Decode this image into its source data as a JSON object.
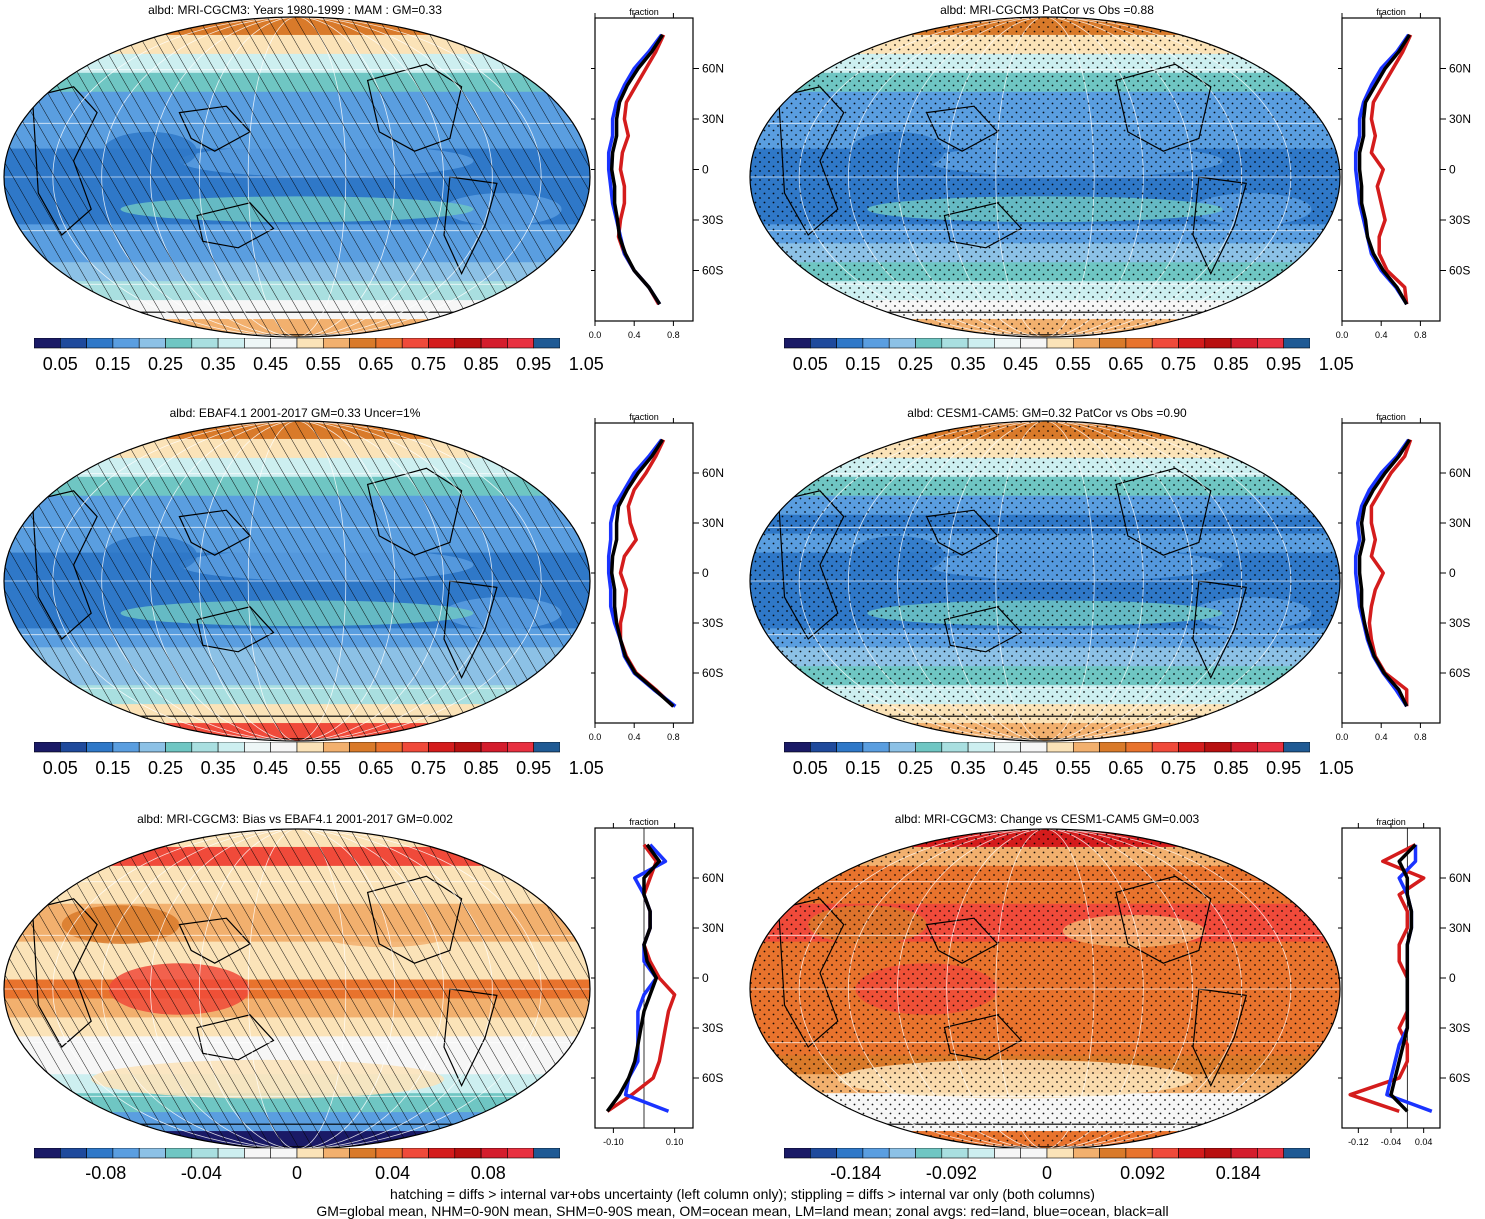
{
  "colors": {
    "abs_scale": [
      "#1a1a66",
      "#1f4a9c",
      "#2f78c8",
      "#5a9ee0",
      "#8cc1e6",
      "#6fc6c3",
      "#a9dfe0",
      "#cdeff0",
      "#eef7f7",
      "#f6f6f6",
      "#fbe3b8",
      "#f2b06e",
      "#d97a2a",
      "#e8732d",
      "#f04a3a",
      "#d41c1c",
      "#b81010",
      "#d41c2c",
      "#e83040",
      "#1f5a94"
    ],
    "diff_scale": [
      "#1a1a66",
      "#1f4a9c",
      "#2f78c8",
      "#5a9ee0",
      "#8cc1e6",
      "#6fc6c3",
      "#a9dfe0",
      "#cdeff0",
      "#f6f6f6",
      "#f6f6f6",
      "#fbe3b8",
      "#f2b06e",
      "#d97a2a",
      "#e8732d",
      "#f04a3a",
      "#d41c1c",
      "#b81010",
      "#d41c2c",
      "#e83040",
      "#1f5a94"
    ],
    "land": "#d41c1c",
    "ocean": "#1a33ff",
    "all": "#000000"
  },
  "footer": {
    "line1": "hatching = diffs > internal var+obs uncertainty (left column only); stippling = diffs > internal var only (both columns)",
    "line2": "GM=global mean, NHM=0-90N mean, SHM=0-90S mean, OM=ocean mean, LM=land mean; zonal avgs: red=land, blue=ocean, black=all"
  },
  "chart_data": [
    {
      "type": "heatmap",
      "title": "albd: MRI-CGCM3: Years 1980-1999 : MAM : GM=0.33",
      "overlay": "hatching",
      "colorbar_labels": [
        "0.05",
        "0.15",
        "0.25",
        "0.35",
        "0.45",
        "0.55",
        "0.65",
        "0.75",
        "0.85",
        "0.95",
        "1.05"
      ],
      "zonal": {
        "title": "fraction",
        "xticks": [
          "0.0",
          "0.4",
          "0.8"
        ],
        "xlim": [
          0,
          1.0
        ],
        "yticks": [
          "60N",
          "30N",
          "0",
          "30S",
          "60S"
        ],
        "lat": [
          80,
          70,
          60,
          50,
          40,
          30,
          20,
          10,
          0,
          -10,
          -20,
          -30,
          -40,
          -50,
          -60,
          -70,
          -80
        ],
        "land": [
          0.7,
          0.62,
          0.52,
          0.42,
          0.32,
          0.3,
          0.34,
          0.28,
          0.26,
          0.3,
          0.3,
          0.26,
          0.24,
          0.3,
          0.4,
          0.55,
          0.65
        ],
        "ocean": [
          0.68,
          0.55,
          0.4,
          0.3,
          0.22,
          0.18,
          0.18,
          0.14,
          0.14,
          0.16,
          0.18,
          0.22,
          0.26,
          0.3,
          0.4,
          0.55,
          0.66
        ],
        "all": [
          0.69,
          0.58,
          0.44,
          0.33,
          0.25,
          0.22,
          0.22,
          0.18,
          0.17,
          0.2,
          0.2,
          0.23,
          0.25,
          0.31,
          0.4,
          0.55,
          0.66
        ]
      }
    },
    {
      "type": "heatmap",
      "title": "albd: MRI-CGCM3 PatCor vs Obs =0.88",
      "overlay": "stippling",
      "colorbar_labels": [
        "0.05",
        "0.15",
        "0.25",
        "0.35",
        "0.45",
        "0.55",
        "0.65",
        "0.75",
        "0.85",
        "0.95",
        "1.05"
      ],
      "zonal": {
        "title": "fraction",
        "xticks": [
          "0.0",
          "0.4",
          "0.8"
        ],
        "xlim": [
          0,
          1.0
        ],
        "yticks": [
          "60N",
          "30N",
          "0",
          "30S",
          "60S"
        ],
        "lat": [
          80,
          70,
          60,
          50,
          40,
          30,
          20,
          10,
          0,
          -10,
          -20,
          -30,
          -40,
          -50,
          -60,
          -70,
          -80
        ],
        "land": [
          0.7,
          0.62,
          0.52,
          0.42,
          0.32,
          0.3,
          0.34,
          0.3,
          0.42,
          0.36,
          0.4,
          0.44,
          0.38,
          0.38,
          0.46,
          0.64,
          0.66
        ],
        "ocean": [
          0.68,
          0.56,
          0.4,
          0.3,
          0.22,
          0.18,
          0.18,
          0.14,
          0.14,
          0.16,
          0.18,
          0.22,
          0.26,
          0.3,
          0.4,
          0.55,
          0.66
        ],
        "all": [
          0.69,
          0.58,
          0.44,
          0.34,
          0.24,
          0.22,
          0.22,
          0.18,
          0.18,
          0.2,
          0.2,
          0.24,
          0.26,
          0.32,
          0.42,
          0.56,
          0.66
        ]
      }
    },
    {
      "type": "heatmap",
      "title": "albd: EBAF4.1 2001-2017 GM=0.33 Uncer=1%",
      "overlay": "hatching",
      "colorbar_labels": [
        "0.05",
        "0.15",
        "0.25",
        "0.35",
        "0.45",
        "0.55",
        "0.65",
        "0.75",
        "0.85",
        "0.95",
        "1.05"
      ],
      "zonal": {
        "title": "fraction",
        "xticks": [
          "0.0",
          "0.4",
          "0.8"
        ],
        "xlim": [
          0,
          1.0
        ],
        "yticks": [
          "60N",
          "30N",
          "0",
          "30S",
          "60S"
        ],
        "lat": [
          80,
          70,
          60,
          50,
          40,
          30,
          20,
          10,
          0,
          -10,
          -20,
          -30,
          -40,
          -50,
          -60,
          -70,
          -80
        ],
        "land": [
          0.7,
          0.62,
          0.52,
          0.4,
          0.34,
          0.36,
          0.42,
          0.3,
          0.26,
          0.32,
          0.3,
          0.26,
          0.26,
          0.32,
          0.42,
          0.62,
          0.8
        ],
        "ocean": [
          0.68,
          0.55,
          0.4,
          0.3,
          0.2,
          0.16,
          0.16,
          0.14,
          0.14,
          0.16,
          0.16,
          0.2,
          0.26,
          0.3,
          0.4,
          0.6,
          0.82
        ],
        "all": [
          0.69,
          0.58,
          0.44,
          0.33,
          0.24,
          0.22,
          0.22,
          0.18,
          0.17,
          0.2,
          0.2,
          0.22,
          0.26,
          0.31,
          0.41,
          0.61,
          0.8
        ]
      }
    },
    {
      "type": "heatmap",
      "title": "albd: CESM1-CAM5: GM=0.32 PatCor vs Obs =0.90",
      "overlay": "stippling",
      "colorbar_labels": [
        "0.05",
        "0.15",
        "0.25",
        "0.35",
        "0.45",
        "0.55",
        "0.65",
        "0.75",
        "0.85",
        "0.95",
        "1.05"
      ],
      "zonal": {
        "title": "fraction",
        "xticks": [
          "0.0",
          "0.4",
          "0.8"
        ],
        "xlim": [
          0,
          1.0
        ],
        "yticks": [
          "60N",
          "30N",
          "0",
          "30S",
          "60S"
        ],
        "lat": [
          80,
          70,
          60,
          50,
          40,
          30,
          20,
          10,
          0,
          -10,
          -20,
          -30,
          -40,
          -50,
          -60,
          -70,
          -80
        ],
        "land": [
          0.7,
          0.64,
          0.5,
          0.4,
          0.3,
          0.3,
          0.34,
          0.3,
          0.42,
          0.34,
          0.3,
          0.28,
          0.3,
          0.34,
          0.44,
          0.66,
          0.66
        ],
        "ocean": [
          0.68,
          0.56,
          0.4,
          0.28,
          0.2,
          0.16,
          0.18,
          0.14,
          0.14,
          0.16,
          0.18,
          0.22,
          0.26,
          0.32,
          0.42,
          0.55,
          0.66
        ],
        "all": [
          0.69,
          0.58,
          0.44,
          0.32,
          0.23,
          0.2,
          0.22,
          0.18,
          0.18,
          0.2,
          0.2,
          0.23,
          0.27,
          0.33,
          0.43,
          0.58,
          0.66
        ]
      }
    },
    {
      "type": "heatmap",
      "title": "albd: MRI-CGCM3: Bias vs EBAF4.1 2001-2017 GM=0.002",
      "overlay": "hatching",
      "colorbar_labels": [
        "-0.08",
        "-0.04",
        "0",
        "0.04",
        "0.08"
      ],
      "zonal": {
        "title": "fraction",
        "xticks": [
          "-0.10",
          "0.10"
        ],
        "xlim": [
          -0.16,
          0.16
        ],
        "yticks": [
          "60N",
          "30N",
          "0",
          "30S",
          "60S"
        ],
        "lat": [
          80,
          70,
          60,
          50,
          40,
          30,
          20,
          10,
          0,
          -10,
          -20,
          -30,
          -40,
          -50,
          -60,
          -70,
          -80
        ],
        "land": [
          0.0,
          0.04,
          0.02,
          0.0,
          0.02,
          0.02,
          0.0,
          0.02,
          0.05,
          0.1,
          0.08,
          0.07,
          0.06,
          0.05,
          0.03,
          -0.04,
          -0.12
        ],
        "ocean": [
          0.02,
          0.07,
          -0.03,
          0.0,
          0.02,
          0.02,
          0.0,
          0.0,
          0.04,
          0.0,
          -0.02,
          -0.02,
          -0.02,
          -0.02,
          -0.05,
          -0.06,
          0.08
        ],
        "all": [
          0.01,
          0.05,
          0.0,
          0.0,
          0.02,
          0.02,
          0.0,
          0.01,
          0.04,
          0.02,
          0.0,
          -0.01,
          -0.02,
          -0.03,
          -0.05,
          -0.08,
          -0.12
        ]
      }
    },
    {
      "type": "heatmap",
      "title": "albd: MRI-CGCM3: Change vs CESM1-CAM5 GM=0.003",
      "overlay": "stippling",
      "colorbar_labels": [
        "-0.184",
        "-0.092",
        "0",
        "0.092",
        "0.184"
      ],
      "zonal": {
        "title": "fraction",
        "xticks": [
          "-0.12",
          "-0.04",
          "0.04"
        ],
        "xlim": [
          -0.16,
          0.08
        ],
        "yticks": [
          "60N",
          "30N",
          "0",
          "30S",
          "60S"
        ],
        "lat": [
          80,
          70,
          60,
          50,
          40,
          30,
          20,
          10,
          0,
          -10,
          -20,
          -30,
          -40,
          -50,
          -60,
          -70,
          -80
        ],
        "land": [
          0.02,
          -0.06,
          0.04,
          -0.02,
          0.0,
          0.0,
          -0.02,
          -0.02,
          0.0,
          0.0,
          0.0,
          -0.02,
          0.0,
          0.0,
          -0.02,
          -0.14,
          -0.02
        ],
        "ocean": [
          0.02,
          0.02,
          -0.02,
          0.0,
          0.01,
          0.01,
          0.0,
          0.0,
          0.0,
          0.0,
          0.0,
          0.0,
          -0.02,
          -0.03,
          -0.04,
          -0.05,
          0.06
        ],
        "all": [
          0.02,
          -0.02,
          0.0,
          0.0,
          0.01,
          0.01,
          0.0,
          0.0,
          0.0,
          0.0,
          0.0,
          0.0,
          -0.01,
          -0.02,
          -0.03,
          -0.04,
          0.0
        ]
      }
    }
  ]
}
